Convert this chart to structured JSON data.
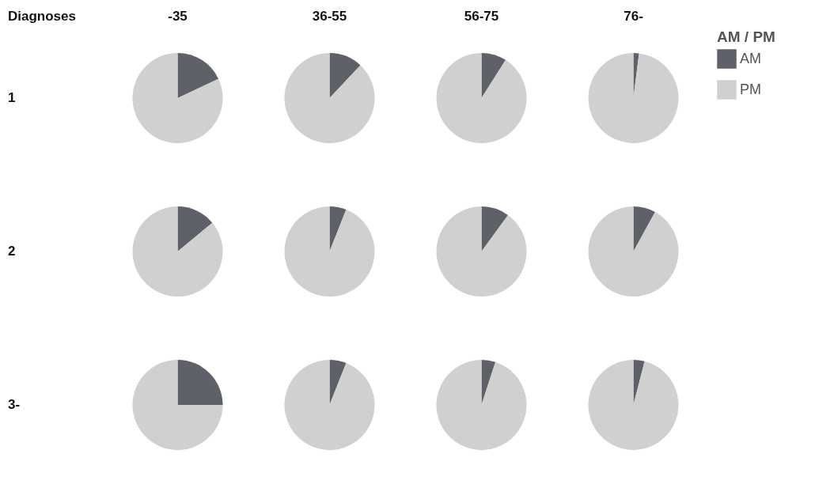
{
  "chart_data": [
    {
      "type": "pie",
      "title": "-35",
      "ylabel": "1",
      "annotations": [
        "Diagnoses"
      ],
      "legend": "top right",
      "legend_title": "AM / PM",
      "categories": [
        "AM",
        "PM"
      ],
      "values": [
        18,
        82
      ],
      "colors": [
        "#5f6168",
        "#d0d0d0"
      ]
    },
    {
      "type": "pie",
      "title": "36-55",
      "values": [
        12,
        88
      ],
      "colors": [
        "#5f6168",
        "#d0d0d0"
      ]
    },
    {
      "type": "pie",
      "title": "56-75",
      "values": [
        9,
        91
      ],
      "colors": [
        "#5f6168",
        "#d0d0d0"
      ]
    },
    {
      "type": "pie",
      "title": "76-",
      "values": [
        2,
        98
      ],
      "colors": [
        "#5f6168",
        "#d0d0d0"
      ]
    },
    {
      "type": "pie",
      "ylabel": "2",
      "values": [
        14,
        86
      ],
      "colors": [
        "#5f6168",
        "#d0d0d0"
      ]
    },
    {
      "type": "pie",
      "values": [
        6,
        94
      ],
      "colors": [
        "#5f6168",
        "#d0d0d0"
      ]
    },
    {
      "type": "pie",
      "values": [
        10,
        90
      ],
      "colors": [
        "#5f6168",
        "#d0d0d0"
      ]
    },
    {
      "type": "pie",
      "values": [
        8,
        92
      ],
      "colors": [
        "#5f6168",
        "#d0d0d0"
      ]
    },
    {
      "type": "pie",
      "ylabel": "3-",
      "values": [
        25,
        75
      ],
      "colors": [
        "#5f6168",
        "#d0d0d0"
      ]
    },
    {
      "type": "pie",
      "values": [
        6,
        94
      ],
      "colors": [
        "#5f6168",
        "#d0d0d0"
      ]
    },
    {
      "type": "pie",
      "values": [
        5,
        95
      ],
      "colors": [
        "#5f6168",
        "#d0d0d0"
      ]
    },
    {
      "type": "pie",
      "values": [
        4,
        96
      ],
      "colors": [
        "#5f6168",
        "#d0d0d0"
      ]
    }
  ]
}
